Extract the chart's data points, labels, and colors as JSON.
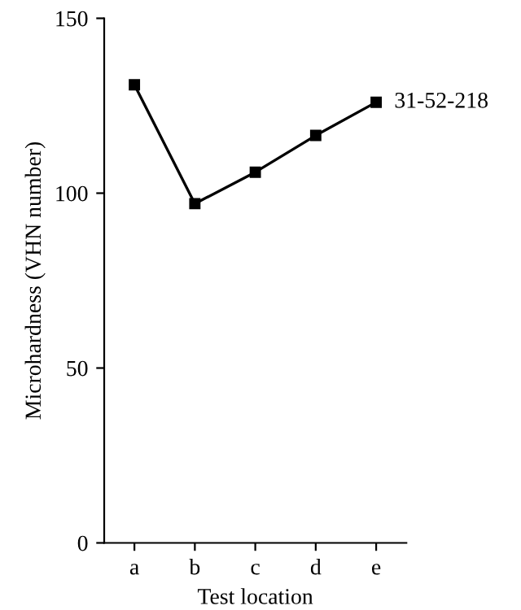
{
  "chart_data": {
    "type": "line",
    "xlabel": "Test location",
    "ylabel": "Microhardness (VHN number)",
    "categories": [
      "a",
      "b",
      "c",
      "d",
      "e"
    ],
    "series": [
      {
        "name": "31-52-218",
        "color": "#000000",
        "values": [
          131,
          97,
          106,
          116.5,
          126
        ]
      }
    ],
    "ylim": [
      0,
      150
    ],
    "yticks": [
      0,
      50,
      100,
      150
    ],
    "marker": "square",
    "line_style": "solid",
    "grid": false,
    "legend": false
  }
}
